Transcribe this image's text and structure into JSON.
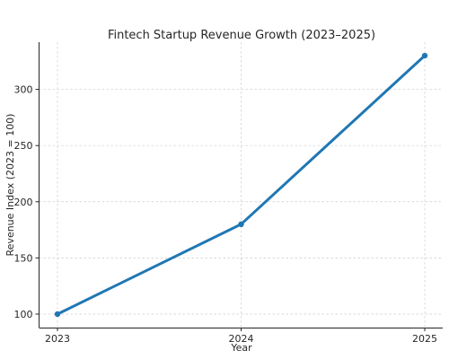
{
  "chart_data": {
    "type": "line",
    "title": "Fintech Startup Revenue Growth (2023–2025)",
    "xlabel": "Year",
    "ylabel": "Revenue Index (2023 = 100)",
    "categories": [
      "2023",
      "2024",
      "2025"
    ],
    "values": [
      100,
      180,
      330
    ],
    "ylim": [
      88,
      342
    ],
    "yticks": [
      100,
      150,
      200,
      250,
      300
    ],
    "grid": true,
    "legend": "none",
    "line_color": "#1f77b4",
    "grid_color": "#cccccc",
    "axis_color": "#262626"
  }
}
